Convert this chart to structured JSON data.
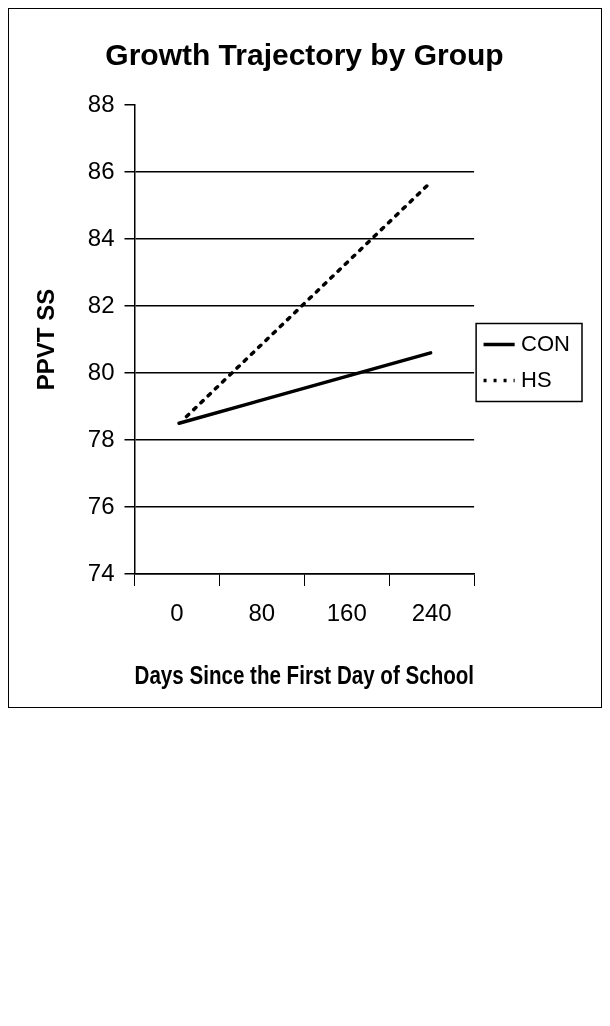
{
  "chart_data": {
    "type": "line",
    "title": "Growth Trajectory by Group",
    "xlabel": "Days Since the First Day of School",
    "ylabel": "PPVT SS",
    "series": [
      {
        "name": "CON",
        "color": "#000000",
        "line_style": "solid",
        "x": [
          2,
          239
        ],
        "values": [
          78.5,
          80.6
        ]
      },
      {
        "name": "HS",
        "color": "#000000",
        "line_style": "dotted",
        "x": [
          9,
          236
        ],
        "values": [
          78.7,
          85.6
        ]
      }
    ],
    "xlim": [
      -40,
      280
    ],
    "xticks": [
      {
        "value": -40,
        "label": null
      },
      0,
      {
        "value": 40,
        "label": null
      },
      80,
      {
        "value": 120,
        "label": null
      },
      160,
      {
        "value": 200,
        "label": null
      },
      240,
      {
        "value": 280,
        "label": null
      }
    ],
    "ylim": [
      74,
      88
    ],
    "yticks": [
      74,
      76,
      78,
      80,
      82,
      84,
      86,
      88
    ],
    "grid": "y",
    "legend": "right",
    "marker": "none"
  }
}
